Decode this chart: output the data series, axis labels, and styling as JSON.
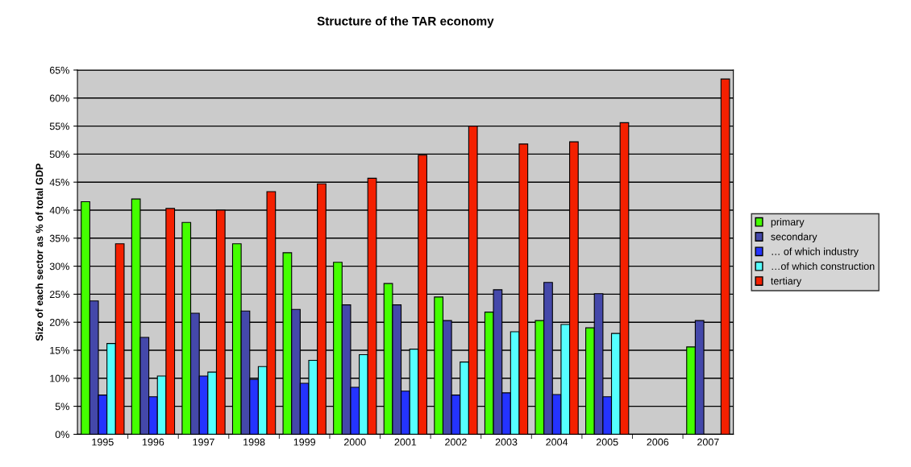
{
  "chart_data": {
    "type": "bar",
    "title": "Structure of the TAR economy",
    "ylabel": "Size of each sector as % of total GDP",
    "categories": [
      "1995",
      "1996",
      "1997",
      "1998",
      "1999",
      "2000",
      "2001",
      "2002",
      "2003",
      "2004",
      "2005",
      "2006",
      "2007"
    ],
    "series": [
      {
        "name": "primary",
        "color": "#44ff00",
        "values": [
          41.5,
          42.0,
          37.8,
          34.0,
          32.4,
          30.7,
          26.9,
          24.5,
          21.8,
          20.3,
          19.0,
          null,
          15.6
        ]
      },
      {
        "name": "secondary",
        "color": "#4448aa",
        "values": [
          23.8,
          17.3,
          21.6,
          22.0,
          22.3,
          23.1,
          23.1,
          20.3,
          25.8,
          27.1,
          25.1,
          null,
          20.3
        ]
      },
      {
        "name": "… of which industry",
        "color": "#2433ff",
        "values": [
          7.0,
          6.7,
          10.4,
          9.8,
          9.1,
          8.4,
          7.7,
          7.0,
          7.4,
          7.1,
          6.7,
          null,
          null
        ]
      },
      {
        "name": "…of which construction",
        "color": "#55ffff",
        "values": [
          16.2,
          10.4,
          11.1,
          12.1,
          13.2,
          14.2,
          15.2,
          12.9,
          18.3,
          19.6,
          18.0,
          null,
          null
        ]
      },
      {
        "name": "tertiary",
        "color": "#f42000",
        "values": [
          34.0,
          40.3,
          40.0,
          43.3,
          44.7,
          45.7,
          49.8,
          55.0,
          51.8,
          52.2,
          55.6,
          null,
          63.4
        ]
      }
    ],
    "ylim": [
      0,
      65
    ],
    "yticks": [
      {
        "value": 0,
        "label": "0%"
      },
      {
        "value": 5,
        "label": "5%"
      },
      {
        "value": 10,
        "label": "10%"
      },
      {
        "value": 15,
        "label": "15%"
      },
      {
        "value": 20,
        "label": "20%"
      },
      {
        "value": 25,
        "label": "25%"
      },
      {
        "value": 30,
        "label": "30%"
      },
      {
        "value": 35,
        "label": "35%"
      },
      {
        "value": 40,
        "label": "40%"
      },
      {
        "value": 45,
        "label": "45%"
      },
      {
        "value": 50,
        "label": "50%"
      },
      {
        "value": 55,
        "label": "55%"
      },
      {
        "value": 60,
        "label": "60%"
      },
      {
        "value": 65,
        "label": "65%"
      }
    ],
    "grid": "y",
    "legend": "right"
  }
}
